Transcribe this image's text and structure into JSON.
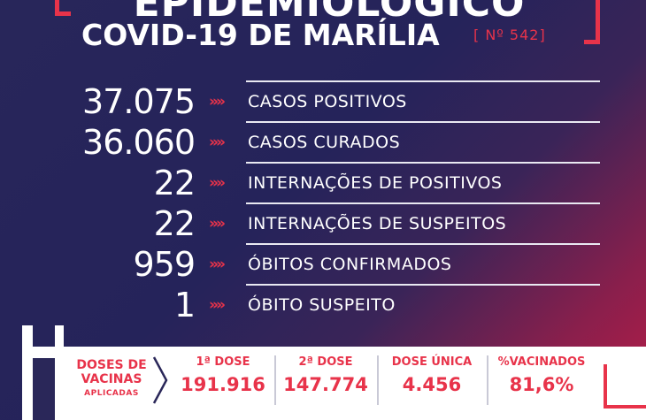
{
  "header": {
    "title": "EPIDEMIOLÓGICO",
    "subtitle": "COVID-19 DE MARÍLIA",
    "bulletin_number": "[ Nº 542]"
  },
  "stats": [
    {
      "value": "37.075",
      "label": "CASOS POSITIVOS"
    },
    {
      "value": "36.060",
      "label": "CASOS CURADOS"
    },
    {
      "value": "22",
      "label": "INTERNAÇÕES DE POSITIVOS"
    },
    {
      "value": "22",
      "label": "INTERNAÇÕES DE SUSPEITOS"
    },
    {
      "value": "959",
      "label": "ÓBITOS CONFIRMADOS"
    },
    {
      "value": "1",
      "label": "ÓBITO SUSPEITO"
    }
  ],
  "arrow_glyph": "»»",
  "vaccines": {
    "title_line1": "DOSES DE",
    "title_line2": "VACINAS",
    "title_line3": "APLICADAS",
    "columns": [
      {
        "head": "1ª DOSE",
        "value": "191.916"
      },
      {
        "head": "2ª DOSE",
        "value": "147.774"
      },
      {
        "head": "DOSE ÚNICA",
        "value": "4.456"
      },
      {
        "head": "%VACINADOS",
        "value": "81,6%"
      }
    ]
  },
  "colors": {
    "accent": "#e8334a",
    "background": "#25235a",
    "text": "#ffffff"
  }
}
